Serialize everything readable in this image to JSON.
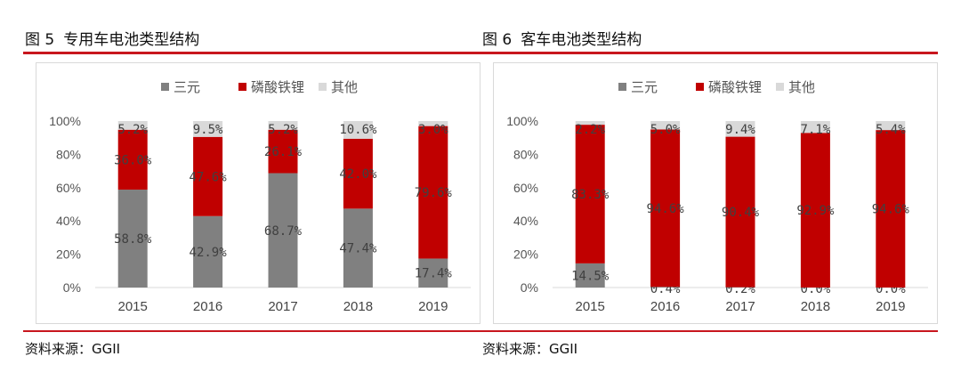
{
  "colors": {
    "sanyuan": "#808080",
    "lfp": "#c00000",
    "other": "#d9d9d9",
    "rule": "#c8161e"
  },
  "figures": [
    {
      "fig_num": "图 5",
      "title": "专用车电池类型结构",
      "source": "资料来源：GGII"
    },
    {
      "fig_num": "图 6",
      "title": "客车电池类型结构",
      "source": "资料来源：GGII"
    }
  ],
  "chart_data": [
    {
      "type": "bar",
      "stacked": true,
      "categories": [
        "2015",
        "2016",
        "2017",
        "2018",
        "2019"
      ],
      "ylim": [
        0,
        100
      ],
      "yticks": [
        "0%",
        "20%",
        "40%",
        "60%",
        "80%",
        "100%"
      ],
      "legend_position": "top",
      "grid": false,
      "series": [
        {
          "name": "三元",
          "color": "#808080",
          "values": [
            58.8,
            42.9,
            68.7,
            47.4,
            17.4
          ],
          "labels": [
            "58.8%",
            "42.9%",
            "68.7%",
            "47.4%",
            "17.4%"
          ]
        },
        {
          "name": "磷酸铁锂",
          "color": "#c00000",
          "values": [
            36.0,
            47.6,
            26.1,
            42.0,
            79.6
          ],
          "labels": [
            "36.0%",
            "47.6%",
            "26.1%",
            "42.0%",
            "79.6%"
          ]
        },
        {
          "name": "其他",
          "color": "#d9d9d9",
          "values": [
            5.2,
            9.5,
            5.2,
            10.6,
            3.0
          ],
          "labels": [
            "5.2%",
            "9.5%",
            "5.2%",
            "10.6%",
            "3.0%"
          ]
        }
      ]
    },
    {
      "type": "bar",
      "stacked": true,
      "categories": [
        "2015",
        "2016",
        "2017",
        "2018",
        "2019"
      ],
      "ylim": [
        0,
        100
      ],
      "yticks": [
        "0%",
        "20%",
        "40%",
        "60%",
        "80%",
        "100%"
      ],
      "legend_position": "top",
      "grid": false,
      "series": [
        {
          "name": "三元",
          "color": "#808080",
          "values": [
            14.5,
            0.4,
            0.2,
            0.0,
            0.0
          ],
          "labels": [
            "14.5%",
            "0.4%",
            "0.2%",
            "0.0%",
            "0.0%"
          ]
        },
        {
          "name": "磷酸铁锂",
          "color": "#c00000",
          "values": [
            83.3,
            94.6,
            90.4,
            92.9,
            94.6
          ],
          "labels": [
            "83.3%",
            "94.6%",
            "90.4%",
            "92.9%",
            "94.6%"
          ]
        },
        {
          "name": "其他",
          "color": "#d9d9d9",
          "values": [
            2.2,
            5.0,
            9.4,
            7.1,
            5.4
          ],
          "labels": [
            "2.2%",
            "5.0%",
            "9.4%",
            "7.1%",
            "5.4%"
          ]
        }
      ]
    }
  ]
}
